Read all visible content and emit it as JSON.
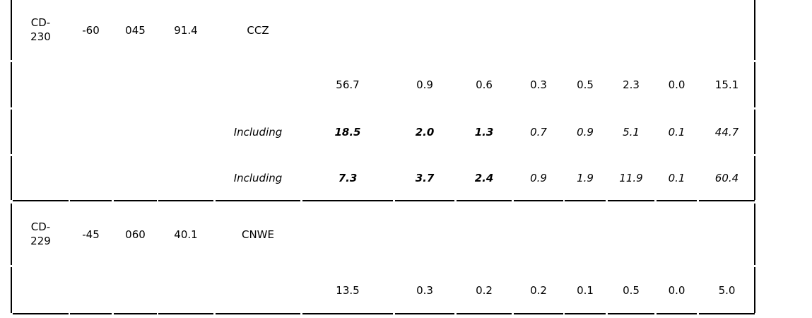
{
  "table": {
    "rows": [
      [
        "CD-230",
        "-60",
        "045",
        "91.4",
        "CCZ",
        null,
        null,
        null,
        null,
        null,
        null,
        null,
        null
      ],
      [
        null,
        null,
        null,
        null,
        null,
        "56.7",
        "0.9",
        "0.6",
        "0.3",
        "0.5",
        "2.3",
        "0.0",
        "15.1"
      ],
      [
        null,
        null,
        null,
        null,
        "Including",
        "18.5",
        "2.0",
        "1.3",
        "0.7",
        "0.9",
        "5.1",
        "0.1",
        "44.7"
      ],
      [
        null,
        null,
        null,
        null,
        "Including",
        "7.3",
        "3.7",
        "2.4",
        "0.9",
        "1.9",
        "11.9",
        "0.1",
        "60.4"
      ],
      [
        "CD-229",
        "-45",
        "060",
        "40.1",
        "CNWE",
        null,
        null,
        null,
        null,
        null,
        null,
        null,
        null
      ],
      [
        null,
        null,
        null,
        null,
        null,
        "13.5",
        "0.3",
        "0.2",
        "0.2",
        "0.1",
        "0.5",
        "0.0",
        "5.0"
      ]
    ]
  }
}
